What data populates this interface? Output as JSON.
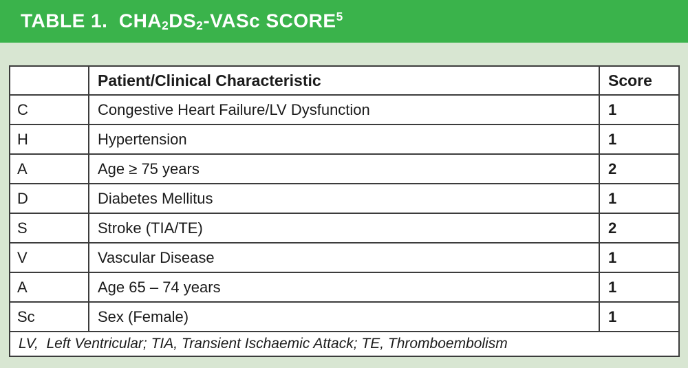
{
  "colors": {
    "banner_green": "#3ab34b",
    "page_green": "#d8e6d2",
    "border_dark": "#3c3c3c",
    "title_text": "#ffffff"
  },
  "banner": {
    "title_seg1": "TABLE 1.  CHA",
    "title_sub1": "2",
    "title_seg2": "DS",
    "title_sub2": "2",
    "title_seg3": "-VASc SCORE",
    "title_sup": "5"
  },
  "table": {
    "headers": {
      "letter": "",
      "characteristic": "Patient/Clinical Characteristic",
      "score": "Score"
    },
    "rows": [
      {
        "letter": "C",
        "characteristic": "Congestive Heart Failure/LV Dysfunction",
        "score": "1"
      },
      {
        "letter": "H",
        "characteristic": "Hypertension",
        "score": "1"
      },
      {
        "letter": "A",
        "characteristic": "Age ≥ 75 years",
        "score": "2"
      },
      {
        "letter": "D",
        "characteristic": "Diabetes Mellitus",
        "score": "1"
      },
      {
        "letter": "S",
        "characteristic": "Stroke (TIA/TE)",
        "score": "2"
      },
      {
        "letter": "V",
        "characteristic": "Vascular Disease",
        "score": "1"
      },
      {
        "letter": "A",
        "characteristic": "Age 65 – 74 years",
        "score": "1"
      },
      {
        "letter": "Sc",
        "characteristic": "Sex (Female)",
        "score": "1"
      }
    ],
    "footnote": "LV,  Left Ventricular; TIA, Transient Ischaemic Attack; TE, Thromboembolism"
  }
}
